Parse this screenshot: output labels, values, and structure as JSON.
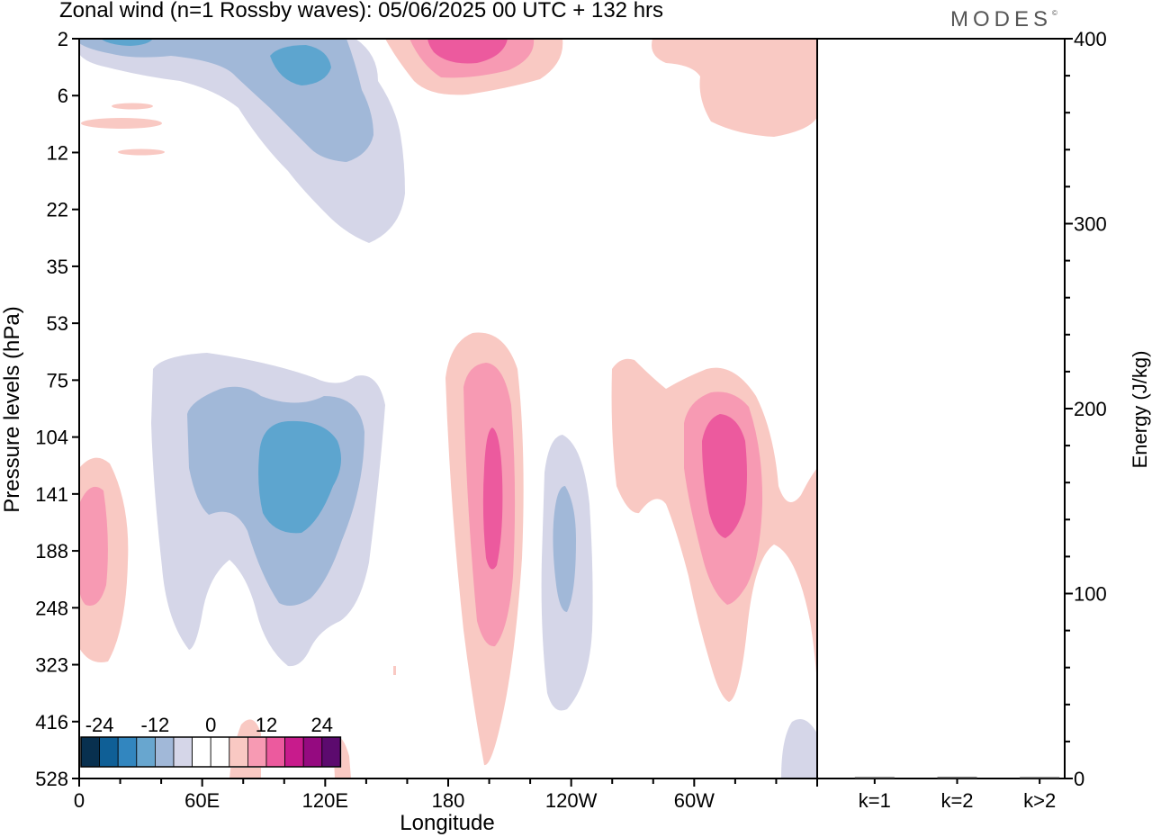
{
  "header": {
    "title": "Zonal wind (n=1 Rossby waves):  05/06/2025  00 UTC  + 132 hrs",
    "brand": "MODES",
    "brand_mark": "©"
  },
  "colors": {
    "neg_strong": "#5da5cf",
    "neg_mid": "#a1b8d8",
    "neg_weak": "#d5d6e8",
    "pos_weak": "#f9c9c3",
    "pos_mid": "#f79ab3",
    "pos_strong": "#ec5a9e",
    "colorbar": [
      "#08304f",
      "#0f5f96",
      "#3286bf",
      "#68a6cf",
      "#a1b8d8",
      "#d5d6e8",
      "#ffffff",
      "#ffffff",
      "#f9c9c3",
      "#f79ab3",
      "#ec5a9e",
      "#c81b8c",
      "#950a80",
      "#5c0a6e"
    ]
  },
  "chart_data": [
    {
      "type": "heatmap",
      "title": "Zonal wind (n=1 Rossby waves):  05/06/2025  00 UTC  + 132 hrs",
      "xlabel": "Longitude",
      "ylabel": "Pressure levels (hPa)",
      "x_ticks": [
        "0",
        "60E",
        "120E",
        "180",
        "120W",
        "60W"
      ],
      "x_tick_values": [
        0,
        60,
        120,
        180,
        240,
        300
      ],
      "xlim": [
        0,
        360
      ],
      "y_ticks": [
        "2",
        "6",
        "12",
        "22",
        "35",
        "53",
        "75",
        "104",
        "141",
        "188",
        "248",
        "323",
        "416",
        "528"
      ],
      "colorbar": {
        "labels": [
          "-24",
          "-12",
          "0",
          "12",
          "24"
        ]
      },
      "contour_regions": [
        {
          "sign": "negative",
          "level": "weak",
          "lon_range": [
            0,
            160
          ],
          "p_range": [
            2,
            30
          ]
        },
        {
          "sign": "negative",
          "level": "mid",
          "lon_range": [
            0,
            145
          ],
          "p_range": [
            2,
            18
          ]
        },
        {
          "sign": "negative",
          "level": "strong",
          "lon_range": [
            70,
            120
          ],
          "p_range": [
            2,
            5
          ]
        },
        {
          "sign": "positive",
          "level": "weak",
          "lon_range": [
            150,
            240
          ],
          "p_range": [
            2,
            6
          ]
        },
        {
          "sign": "positive",
          "level": "mid",
          "lon_range": [
            160,
            230
          ],
          "p_range": [
            2,
            4
          ]
        },
        {
          "sign": "positive",
          "level": "weak",
          "lon_range": [
            280,
            360
          ],
          "p_range": [
            2,
            10
          ]
        },
        {
          "sign": "negative",
          "level": "weak",
          "lon_range": [
            35,
            150
          ],
          "p_range": [
            65,
            330
          ]
        },
        {
          "sign": "negative",
          "level": "mid",
          "lon_range": [
            53,
            140
          ],
          "p_range": [
            95,
            250
          ]
        },
        {
          "sign": "negative",
          "level": "strong",
          "lon_range": [
            87,
            128
          ],
          "p_range": [
            120,
            190
          ]
        },
        {
          "sign": "positive",
          "level": "weak",
          "lon_range": [
            0,
            25
          ],
          "p_range": [
            120,
            320
          ]
        },
        {
          "sign": "positive",
          "level": "mid",
          "lon_range": [
            0,
            15
          ],
          "p_range": [
            140,
            250
          ]
        },
        {
          "sign": "positive",
          "level": "weak",
          "lon_range": [
            178,
            215
          ],
          "p_range": [
            50,
            528
          ]
        },
        {
          "sign": "positive",
          "level": "mid",
          "lon_range": [
            188,
            210
          ],
          "p_range": [
            70,
            340
          ]
        },
        {
          "sign": "positive",
          "level": "strong",
          "lon_range": [
            197,
            205
          ],
          "p_range": [
            110,
            210
          ]
        },
        {
          "sign": "negative",
          "level": "weak",
          "lon_range": [
            226,
            250
          ],
          "p_range": [
            110,
            450
          ]
        },
        {
          "sign": "negative",
          "level": "mid",
          "lon_range": [
            233,
            244
          ],
          "p_range": [
            140,
            250
          ]
        },
        {
          "sign": "positive",
          "level": "weak",
          "lon_range": [
            260,
            360
          ],
          "p_range": [
            70,
            400
          ]
        },
        {
          "sign": "positive",
          "level": "mid",
          "lon_range": [
            295,
            340
          ],
          "p_range": [
            95,
            250
          ]
        },
        {
          "sign": "positive",
          "level": "strong",
          "lon_range": [
            307,
            327
          ],
          "p_range": [
            110,
            175
          ]
        }
      ]
    },
    {
      "type": "bar",
      "ylabel": "Energy (J/kg)",
      "categories": [
        "k=1",
        "k=2",
        "k>2"
      ],
      "values": [
        0.3,
        0.8,
        0.4
      ],
      "ylim": [
        0,
        400
      ],
      "y_ticks": [
        "0",
        "100",
        "200",
        "300",
        "400"
      ]
    }
  ]
}
